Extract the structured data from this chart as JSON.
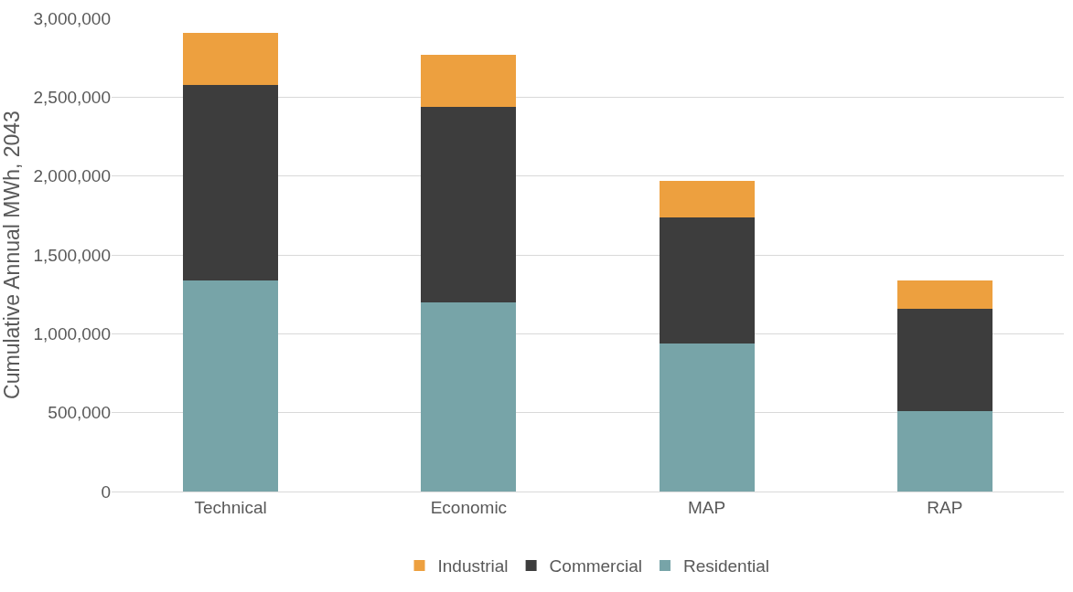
{
  "chart_data": {
    "type": "bar",
    "stacked": true,
    "ylabel": "Cumulative Annual MWh, 2043",
    "categories": [
      "Technical",
      "Economic",
      "MAP",
      "RAP"
    ],
    "series": [
      {
        "name": "Residential",
        "color": "#77a4a8",
        "values": [
          1340000,
          1200000,
          940000,
          510000
        ]
      },
      {
        "name": "Commercial",
        "color": "#3d3d3d",
        "values": [
          1240000,
          1240000,
          800000,
          650000
        ]
      },
      {
        "name": "Industrial",
        "color": "#eda03f",
        "values": [
          330000,
          330000,
          230000,
          180000
        ]
      }
    ],
    "ylim": [
      0,
      3000000
    ],
    "yticks": [
      {
        "value": 0,
        "label": "0"
      },
      {
        "value": 500000,
        "label": "500,000"
      },
      {
        "value": 1000000,
        "label": "1,000,000"
      },
      {
        "value": 1500000,
        "label": "1,500,000"
      },
      {
        "value": 2000000,
        "label": "2,000,000"
      },
      {
        "value": 2500000,
        "label": "2,500,000"
      },
      {
        "value": 3000000,
        "label": "3,000,000"
      }
    ],
    "grid": "y",
    "legend": "bottom"
  }
}
